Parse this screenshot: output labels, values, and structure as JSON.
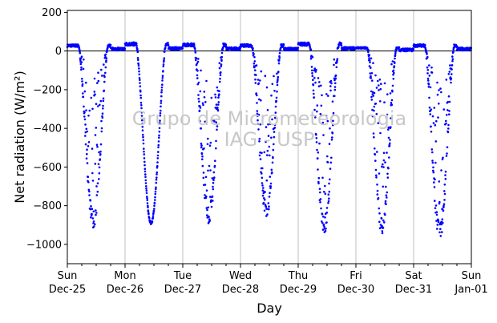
{
  "chart_data": {
    "type": "scatter",
    "xlabel": "Day",
    "ylabel": "Net radiation (W/m²)",
    "watermark": [
      "Grupo de Micrometeorologia",
      "IAG - USP"
    ],
    "ylim": [
      -1100,
      210
    ],
    "xlim": [
      "2016-12-25",
      "2017-01-01"
    ],
    "yticks": [
      200,
      0,
      -200,
      -400,
      -600,
      -800,
      -1000
    ],
    "xticks": [
      {
        "weekday": "Sun",
        "date": "Dec-25"
      },
      {
        "weekday": "Mon",
        "date": "Dec-26"
      },
      {
        "weekday": "Tue",
        "date": "Dec-27"
      },
      {
        "weekday": "Wed",
        "date": "Dec-28"
      },
      {
        "weekday": "Thu",
        "date": "Dec-29"
      },
      {
        "weekday": "Fri",
        "date": "Dec-30"
      },
      {
        "weekday": "Sat",
        "date": "Dec-31"
      },
      {
        "weekday": "Sun",
        "date": "Jan-01"
      }
    ],
    "grid": "vertical",
    "zero_line": true,
    "marker_color": "#0000ff",
    "days": [
      {
        "date": "Dec-25",
        "night": 35,
        "peak": -920,
        "cloudy": true
      },
      {
        "date": "Dec-26",
        "night": 45,
        "peak": -890,
        "cloudy": false
      },
      {
        "date": "Dec-27",
        "night": 40,
        "peak": -900,
        "cloudy": true
      },
      {
        "date": "Dec-28",
        "night": 35,
        "peak": -870,
        "cloudy": true
      },
      {
        "date": "Dec-29",
        "night": 45,
        "peak": -950,
        "cloudy": true
      },
      {
        "date": "Dec-30",
        "night": 20,
        "peak": -950,
        "cloudy": true
      },
      {
        "date": "Dec-31",
        "night": 35,
        "peak": -990,
        "cloudy": true
      }
    ]
  }
}
